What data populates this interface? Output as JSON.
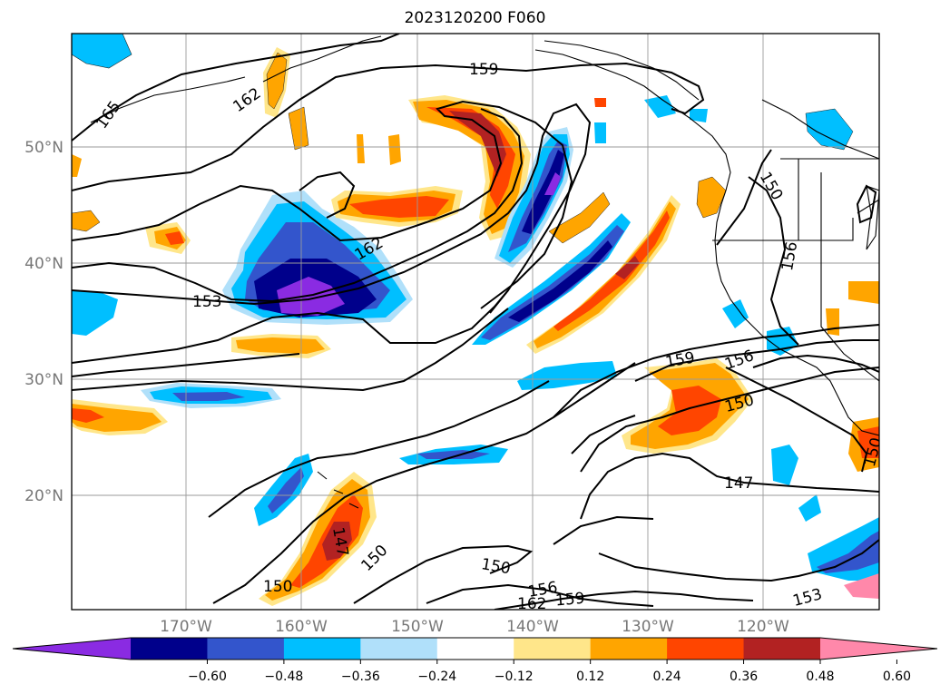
{
  "title": "2023120200 F060",
  "lat_labels": [
    "50°N",
    "40°N",
    "30°N",
    "20°N"
  ],
  "lon_labels": [
    "170°W",
    "160°W",
    "150°W",
    "140°W",
    "130°W",
    "120°W"
  ],
  "contour_labels": [
    "165",
    "162",
    "159",
    "162",
    "153",
    "156",
    "150",
    "156",
    "159",
    "150",
    "147",
    "147",
    "150",
    "150",
    "150",
    "156",
    "162",
    "159",
    "153",
    "150"
  ],
  "colorbar": {
    "colors": [
      "#8a2be2",
      "#00008b",
      "#3355cc",
      "#00bfff",
      "#b0e0fa",
      "#ffffff",
      "#ffe68a",
      "#ffa500",
      "#ff4500",
      "#b22222",
      "#ff88aa"
    ],
    "ticks": [
      "−0.60",
      "−0.48",
      "−0.36",
      "−0.24",
      "−0.12",
      "0.12",
      "0.24",
      "0.36",
      "0.48",
      "0.60"
    ]
  }
}
